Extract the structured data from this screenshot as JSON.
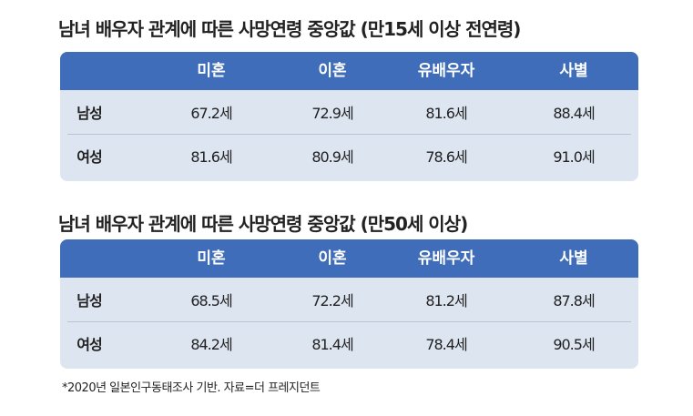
{
  "chart_data": [
    {
      "type": "table",
      "title": "남녀 배우자 관계에 따른 사망연령 중앙값 (만15세 이상 전연령)",
      "columns": [
        "미혼",
        "이혼",
        "유배우자",
        "사별"
      ],
      "rows": [
        {
          "label": "남성",
          "values": [
            "67.2세",
            "72.9세",
            "81.6세",
            "88.4세"
          ]
        },
        {
          "label": "여성",
          "values": [
            "81.6세",
            "80.9세",
            "78.6세",
            "91.0세"
          ]
        }
      ]
    },
    {
      "type": "table",
      "title": "남녀 배우자 관계에 따른 사망연령 중앙값 (만50세 이상)",
      "columns": [
        "미혼",
        "이혼",
        "유배우자",
        "사별"
      ],
      "rows": [
        {
          "label": "남성",
          "values": [
            "68.5세",
            "72.2세",
            "81.2세",
            "87.8세"
          ]
        },
        {
          "label": "여성",
          "values": [
            "84.2세",
            "81.4세",
            "78.4세",
            "90.5세"
          ]
        }
      ]
    }
  ],
  "footnote": "*2020년 일본인구동태조사 기반. 자료=더 프레지던트",
  "colors": {
    "header": "#3f6db9",
    "body": "#dde5f1"
  }
}
